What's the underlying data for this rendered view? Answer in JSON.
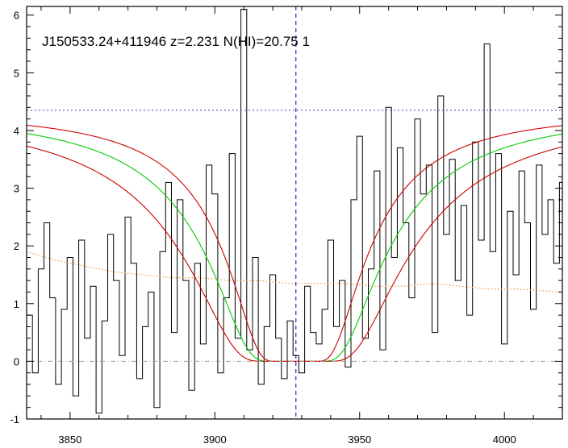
{
  "chart_data": {
    "type": "line",
    "title": "J150533.24+411946 z=2.231 N(HI)=20.75 1",
    "xlabel": "",
    "ylabel": "",
    "xlim": [
      3835,
      4020
    ],
    "ylim": [
      -1,
      6.15
    ],
    "x_ticks": [
      3850,
      3900,
      3950,
      4000
    ],
    "y_ticks": [
      -1,
      0,
      1,
      2,
      3,
      4,
      5,
      6
    ],
    "grid": false,
    "continuum_level": 4.35,
    "zero_level": 0,
    "center_wavelength": 3928,
    "series": [
      {
        "role": "flux-spectrum",
        "style": "step",
        "color": "#000000",
        "x": [
          3835,
          3837,
          3839,
          3841,
          3843,
          3845,
          3847,
          3849,
          3851,
          3853,
          3855,
          3857,
          3859,
          3861,
          3863,
          3865,
          3867,
          3869,
          3871,
          3873,
          3875,
          3877,
          3879,
          3881,
          3883,
          3885,
          3887,
          3889,
          3891,
          3893,
          3895,
          3897,
          3899,
          3901,
          3903,
          3905,
          3907,
          3909,
          3911,
          3913,
          3915,
          3917,
          3919,
          3921,
          3923,
          3925,
          3927,
          3929,
          3931,
          3933,
          3935,
          3937,
          3939,
          3941,
          3943,
          3945,
          3947,
          3949,
          3951,
          3953,
          3955,
          3957,
          3959,
          3961,
          3963,
          3965,
          3967,
          3969,
          3971,
          3973,
          3975,
          3977,
          3979,
          3981,
          3983,
          3985,
          3987,
          3989,
          3991,
          3993,
          3995,
          3997,
          3999,
          4001,
          4003,
          4005,
          4007,
          4009,
          4011,
          4013,
          4015,
          4017,
          4019
        ],
        "y": [
          0.8,
          -0.2,
          1.6,
          2.4,
          1.1,
          -0.4,
          0.9,
          1.8,
          -0.6,
          2.1,
          0.4,
          1.3,
          -0.9,
          0.7,
          2.2,
          1.4,
          0.1,
          2.5,
          1.7,
          -0.3,
          0.6,
          1.2,
          -0.8,
          1.9,
          3.1,
          0.5,
          2.8,
          1.4,
          -0.5,
          1.7,
          0.3,
          3.4,
          2.9,
          -0.2,
          1.1,
          3.6,
          0.4,
          6.1,
          0.2,
          1.8,
          -0.4,
          0.6,
          1.5,
          0.4,
          -0.3,
          0.7,
          0.1,
          -0.2,
          1.3,
          0.5,
          0.3,
          0.9,
          2.1,
          0.6,
          1.4,
          -0.1,
          2.8,
          3.9,
          0.4,
          1.6,
          3.3,
          0.2,
          4.4,
          1.8,
          3.7,
          2.4,
          1.1,
          4.2,
          2.9,
          3.4,
          0.5,
          4.6,
          2.2,
          3.5,
          1.4,
          2.7,
          0.8,
          3.8,
          2.1,
          5.5,
          1.9,
          3.6,
          0.3,
          2.6,
          1.5,
          3.3,
          2.4,
          0.9,
          3.4,
          2.2,
          2.8,
          1.7,
          3.1
        ]
      },
      {
        "role": "error-spectrum",
        "style": "dotted",
        "color": "#e89a3c",
        "x": [
          3835,
          3845,
          3855,
          3865,
          3875,
          3885,
          3895,
          3905,
          3915,
          3925,
          3935,
          3945,
          3955,
          3965,
          3975,
          3985,
          3995,
          4005,
          4020
        ],
        "y": [
          1.9,
          1.75,
          1.65,
          1.55,
          1.5,
          1.45,
          1.45,
          1.4,
          1.4,
          1.35,
          1.35,
          1.35,
          1.3,
          1.3,
          1.35,
          1.3,
          1.25,
          1.25,
          1.2
        ]
      },
      {
        "role": "dla-profile-best-fit",
        "style": "line",
        "color": "#00cc00",
        "nhi_log": 20.75,
        "z": 2.231
      },
      {
        "role": "dla-profile-upper",
        "style": "line",
        "color": "#cc0000",
        "nhi_log": 20.95,
        "z": 2.231
      },
      {
        "role": "dla-profile-lower",
        "style": "line",
        "color": "#cc0000",
        "nhi_log": 20.55,
        "z": 2.231
      }
    ],
    "colors": {
      "continuum": "#6a5acd",
      "zero_line": "#999999",
      "center_line": "#0000aa",
      "axes": "#000000"
    }
  }
}
